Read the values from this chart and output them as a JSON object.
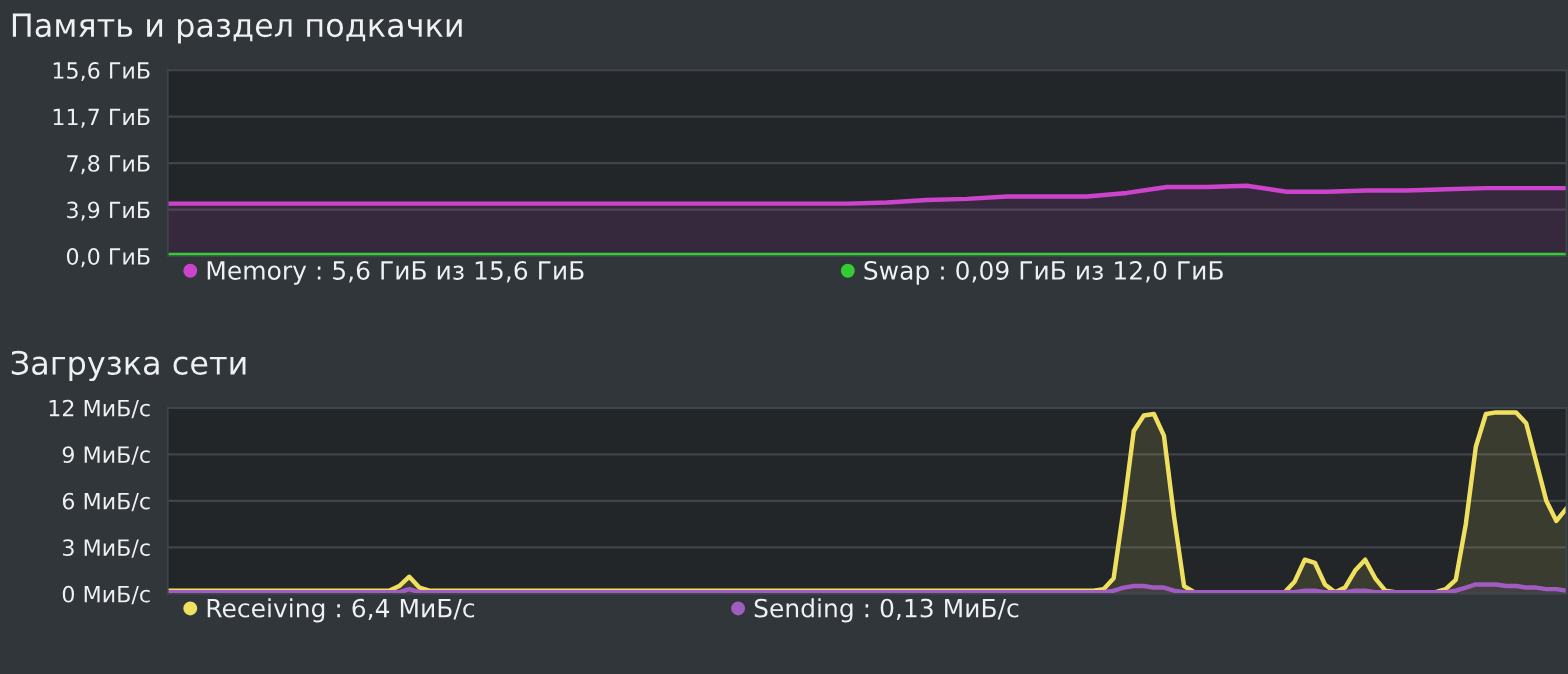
{
  "chart_data": [
    {
      "type": "area",
      "title": "Память и раздел подкачки",
      "categories": [
        null,
        null,
        null,
        null,
        null,
        null,
        null,
        null,
        null,
        null,
        null,
        null,
        null,
        null,
        null,
        null,
        null,
        null,
        null,
        null,
        null,
        null,
        null,
        null,
        null,
        null,
        null,
        null,
        null,
        null,
        null,
        null,
        null,
        null,
        null,
        null
      ],
      "series": [
        {
          "name": "Memory : 5,6 ГиБ из 15,6 ГиБ",
          "color": "#cc44cc",
          "values": [
            4.4,
            4.4,
            4.4,
            4.4,
            4.4,
            4.4,
            4.4,
            4.4,
            4.4,
            4.4,
            4.4,
            4.4,
            4.4,
            4.4,
            4.4,
            4.4,
            4.4,
            4.4,
            4.5,
            4.7,
            4.8,
            5.0,
            5.0,
            5.0,
            5.3,
            5.8,
            5.8,
            5.9,
            5.4,
            5.4,
            5.5,
            5.5,
            5.6,
            5.7,
            5.7,
            5.7
          ]
        },
        {
          "name": "Swap : 0,09 ГиБ из 12,0 ГиБ",
          "color": "#33cc33",
          "values": [
            0.09,
            0.09,
            0.09,
            0.09,
            0.09,
            0.09,
            0.09,
            0.09,
            0.09,
            0.09,
            0.09,
            0.09,
            0.09,
            0.09,
            0.09,
            0.09,
            0.09,
            0.09,
            0.09,
            0.09,
            0.09,
            0.09,
            0.09,
            0.09,
            0.09,
            0.09,
            0.09,
            0.09,
            0.09,
            0.09,
            0.09,
            0.09,
            0.09,
            0.09,
            0.09,
            0.09
          ]
        }
      ],
      "ylim": [
        0,
        15.6
      ],
      "yticks": [
        {
          "value": 0,
          "label": "0,0 ГиБ"
        },
        {
          "value": 3.9,
          "label": "3,9 ГиБ"
        },
        {
          "value": 7.8,
          "label": "7,8 ГиБ"
        },
        {
          "value": 11.7,
          "label": "11,7 ГиБ"
        },
        {
          "value": 15.6,
          "label": "15,6 ГиБ"
        }
      ],
      "grid": "y",
      "legend": "bottom",
      "tick_labels": "y"
    },
    {
      "type": "area",
      "title": "Загрузка сети",
      "categories": [
        null,
        null,
        null,
        null,
        null,
        null,
        null,
        null,
        null,
        null,
        null,
        null,
        null,
        null,
        null,
        null,
        null,
        null,
        null,
        null,
        null,
        null,
        null,
        null,
        null,
        null,
        null,
        null,
        null,
        null,
        null,
        null,
        null,
        null,
        null,
        null,
        null,
        null,
        null,
        null,
        null,
        null,
        null,
        null,
        null,
        null,
        null,
        null,
        null,
        null,
        null,
        null,
        null,
        null,
        null,
        null,
        null,
        null,
        null,
        null,
        null,
        null,
        null,
        null,
        null,
        null,
        null,
        null,
        null,
        null,
        null,
        null,
        null,
        null,
        null,
        null,
        null,
        null,
        null,
        null,
        null,
        null,
        null,
        null,
        null,
        null,
        null,
        null,
        null,
        null,
        null,
        null,
        null,
        null,
        null,
        null,
        null,
        null,
        null,
        null,
        null,
        null,
        null,
        null,
        null,
        null,
        null,
        null,
        null,
        null,
        null,
        null,
        null,
        null,
        null,
        null,
        null,
        null,
        null,
        null,
        null,
        null,
        null,
        null,
        null,
        null,
        null,
        null,
        null,
        null,
        null,
        null,
        null,
        null,
        null,
        null,
        null,
        null,
        null,
        null
      ],
      "series": [
        {
          "name": "Receiving : 6,4 МиБ/с",
          "color": "#f0e060",
          "values": [
            0.2,
            0.2,
            0.2,
            0.2,
            0.2,
            0.2,
            0.2,
            0.2,
            0.2,
            0.2,
            0.2,
            0.2,
            0.2,
            0.2,
            0.2,
            0.2,
            0.2,
            0.2,
            0.2,
            0.2,
            0.2,
            0.2,
            0.2,
            0.5,
            1.1,
            0.4,
            0.2,
            0.2,
            0.2,
            0.2,
            0.2,
            0.2,
            0.2,
            0.2,
            0.2,
            0.2,
            0.2,
            0.2,
            0.2,
            0.2,
            0.2,
            0.2,
            0.2,
            0.2,
            0.2,
            0.2,
            0.2,
            0.2,
            0.2,
            0.2,
            0.2,
            0.2,
            0.2,
            0.2,
            0.2,
            0.2,
            0.2,
            0.2,
            0.2,
            0.2,
            0.2,
            0.2,
            0.2,
            0.2,
            0.2,
            0.2,
            0.2,
            0.2,
            0.2,
            0.2,
            0.2,
            0.2,
            0.2,
            0.2,
            0.2,
            0.2,
            0.2,
            0.2,
            0.2,
            0.2,
            0.2,
            0.2,
            0.2,
            0.2,
            0.2,
            0.2,
            0.2,
            0.2,
            0.2,
            0.2,
            0.2,
            0.2,
            0.2,
            0.3,
            1.0,
            5.5,
            10.5,
            11.5,
            11.6,
            10.2,
            5.0,
            0.5,
            0.1,
            0.1,
            0.1,
            0.1,
            0.1,
            0.1,
            0.1,
            0.1,
            0.1,
            0.1,
            0.8,
            2.2,
            2.0,
            0.6,
            0.1,
            0.4,
            1.5,
            2.2,
            1.0,
            0.2,
            0.1,
            0.1,
            0.1,
            0.1,
            0.1,
            0.3,
            0.9,
            4.5,
            9.5,
            11.6,
            11.7,
            11.7,
            11.7,
            11.0,
            8.5,
            6.0,
            4.7,
            5.5
          ]
        },
        {
          "name": "Sending : 0,13 МиБ/с",
          "color": "#a05cc0",
          "values": [
            0.1,
            0.1,
            0.1,
            0.1,
            0.1,
            0.1,
            0.1,
            0.1,
            0.1,
            0.1,
            0.1,
            0.1,
            0.1,
            0.1,
            0.1,
            0.1,
            0.1,
            0.1,
            0.1,
            0.1,
            0.1,
            0.1,
            0.1,
            0.1,
            0.3,
            0.1,
            0.1,
            0.1,
            0.1,
            0.1,
            0.1,
            0.1,
            0.1,
            0.1,
            0.1,
            0.1,
            0.1,
            0.1,
            0.1,
            0.1,
            0.1,
            0.1,
            0.1,
            0.1,
            0.1,
            0.1,
            0.1,
            0.1,
            0.1,
            0.1,
            0.1,
            0.1,
            0.1,
            0.1,
            0.1,
            0.1,
            0.1,
            0.1,
            0.1,
            0.1,
            0.1,
            0.1,
            0.1,
            0.1,
            0.1,
            0.1,
            0.1,
            0.1,
            0.1,
            0.1,
            0.1,
            0.1,
            0.1,
            0.1,
            0.1,
            0.1,
            0.1,
            0.1,
            0.1,
            0.1,
            0.1,
            0.1,
            0.1,
            0.1,
            0.1,
            0.1,
            0.1,
            0.1,
            0.1,
            0.1,
            0.1,
            0.1,
            0.1,
            0.1,
            0.2,
            0.4,
            0.5,
            0.5,
            0.4,
            0.4,
            0.2,
            0.1,
            0.1,
            0.1,
            0.1,
            0.1,
            0.1,
            0.1,
            0.1,
            0.1,
            0.1,
            0.1,
            0.1,
            0.2,
            0.2,
            0.1,
            0.1,
            0.1,
            0.2,
            0.2,
            0.1,
            0.1,
            0.1,
            0.1,
            0.1,
            0.1,
            0.1,
            0.1,
            0.2,
            0.4,
            0.6,
            0.6,
            0.6,
            0.5,
            0.5,
            0.4,
            0.4,
            0.3,
            0.3,
            0.2
          ]
        }
      ],
      "ylim": [
        0,
        12
      ],
      "yticks": [
        {
          "value": 0,
          "label": "0 МиБ/с"
        },
        {
          "value": 3,
          "label": "3 МиБ/с"
        },
        {
          "value": 6,
          "label": "6 МиБ/с"
        },
        {
          "value": 9,
          "label": "9 МиБ/с"
        },
        {
          "value": 12,
          "label": "12 МиБ/с"
        }
      ],
      "grid": "y",
      "legend": "bottom",
      "tick_labels": "y"
    }
  ]
}
